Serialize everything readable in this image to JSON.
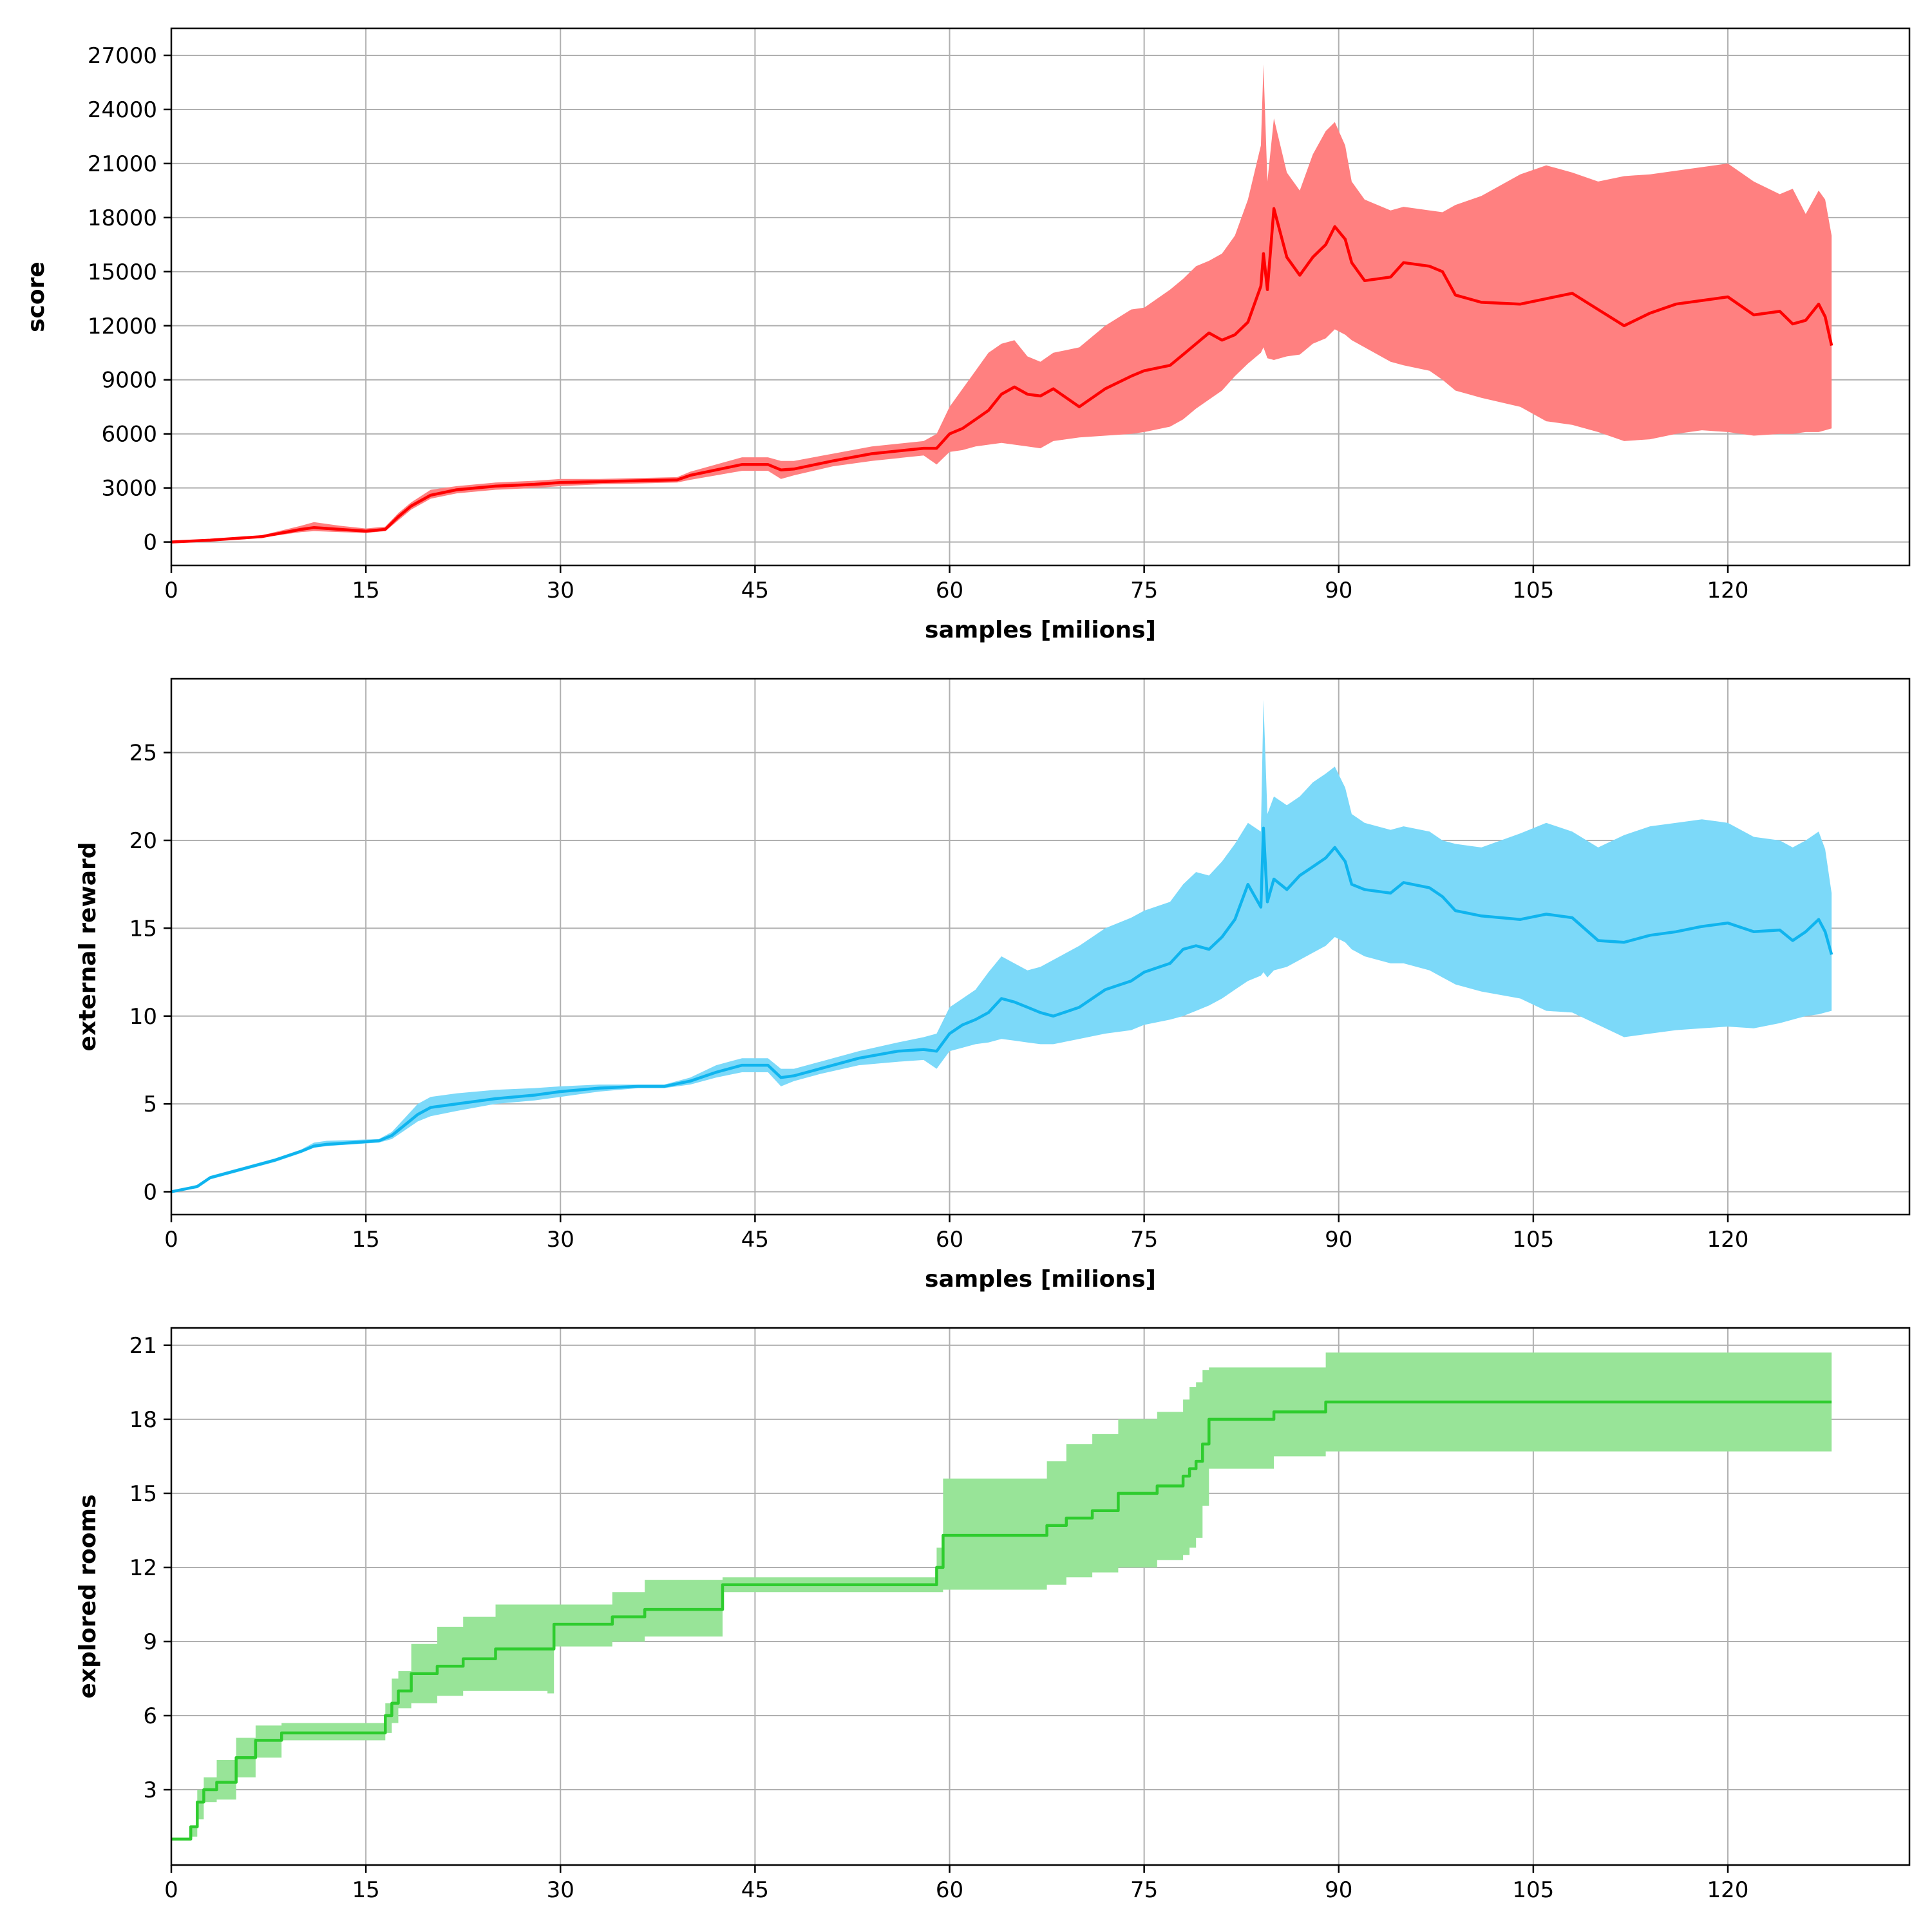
{
  "chart_data": [
    {
      "type": "line",
      "ylabel": "score",
      "xlabel": "samples [milions]",
      "xlim": [
        0,
        134
      ],
      "ylim": [
        -1300,
        28500
      ],
      "xticks": [
        0,
        15,
        30,
        45,
        60,
        75,
        90,
        105,
        120
      ],
      "yticks": [
        0,
        3000,
        6000,
        9000,
        12000,
        15000,
        18000,
        21000,
        24000,
        27000
      ],
      "grid": true,
      "color": "#ff0000",
      "band_color": "#ff8080",
      "series": [
        {
          "x": [
            0,
            3,
            7,
            10,
            11,
            13,
            15,
            16.5,
            17.5,
            18.5,
            20,
            22,
            25,
            28,
            30,
            33,
            36,
            39,
            40,
            42,
            44,
            46,
            47,
            48,
            51,
            54,
            58,
            59,
            60,
            61,
            62,
            63,
            64,
            65,
            66,
            67,
            68,
            70,
            72,
            74,
            75,
            77,
            78,
            79,
            80,
            81,
            82,
            83,
            84,
            84.2,
            84.5,
            85,
            86,
            87,
            88,
            89,
            89.7,
            90.5,
            91,
            92,
            94,
            95,
            97,
            98,
            99,
            101,
            104,
            106,
            108,
            110,
            112,
            114,
            116,
            118,
            120,
            122,
            124,
            125,
            126,
            127,
            127.5,
            128
          ],
          "y": [
            0,
            100,
            300,
            700,
            800,
            700,
            600,
            700,
            1400,
            2000,
            2600,
            2900,
            3100,
            3200,
            3300,
            3350,
            3400,
            3450,
            3700,
            4000,
            4300,
            4300,
            4000,
            4050,
            4500,
            4900,
            5200,
            5200,
            6000,
            6300,
            6800,
            7300,
            8200,
            8600,
            8200,
            8100,
            8500,
            7500,
            8500,
            9200,
            9500,
            9800,
            10400,
            11000,
            11600,
            11200,
            11500,
            12200,
            14200,
            16000,
            14000,
            18500,
            15800,
            14800,
            15800,
            16500,
            17500,
            16800,
            15500,
            14500,
            14700,
            15500,
            15300,
            15000,
            13700,
            13300,
            13200,
            13500,
            13800,
            12900,
            12000,
            12700,
            13200,
            13400,
            13600,
            12600,
            12800,
            12100,
            12300,
            13200,
            12500,
            10900
          ],
          "lower": [
            0,
            80,
            250,
            550,
            600,
            550,
            500,
            600,
            1200,
            1800,
            2400,
            2700,
            2900,
            3000,
            3100,
            3200,
            3250,
            3300,
            3450,
            3700,
            3950,
            3950,
            3500,
            3700,
            4200,
            4500,
            4800,
            4300,
            5000,
            5100,
            5300,
            5400,
            5500,
            5400,
            5300,
            5200,
            5600,
            5800,
            5900,
            6000,
            6100,
            6400,
            6800,
            7400,
            7900,
            8400,
            9200,
            9900,
            10500,
            10800,
            10200,
            10100,
            10300,
            10400,
            11000,
            11300,
            11800,
            11500,
            11200,
            10800,
            10000,
            9800,
            9500,
            9000,
            8400,
            8000,
            7500,
            6700,
            6500,
            6100,
            5600,
            5700,
            6000,
            6200,
            6100,
            5900,
            6000,
            6000,
            6100,
            6100,
            6200,
            6300
          ],
          "upper": [
            0,
            120,
            380,
            900,
            1100,
            900,
            750,
            850,
            1600,
            2200,
            2900,
            3100,
            3300,
            3400,
            3500,
            3500,
            3550,
            3600,
            3900,
            4300,
            4700,
            4700,
            4500,
            4500,
            4900,
            5300,
            5600,
            6000,
            7500,
            8500,
            9500,
            10500,
            11000,
            11200,
            10300,
            10000,
            10500,
            10800,
            12000,
            12900,
            13000,
            14000,
            14600,
            15300,
            15600,
            16000,
            17000,
            19000,
            22000,
            26500,
            20000,
            23500,
            20500,
            19500,
            21500,
            22800,
            23300,
            22000,
            20000,
            19000,
            18400,
            18600,
            18400,
            18300,
            18700,
            19200,
            20400,
            20900,
            20500,
            20000,
            20300,
            20400,
            20600,
            20800,
            21000,
            20000,
            19300,
            19600,
            18200,
            19500,
            19000,
            17000
          ]
        }
      ]
    },
    {
      "type": "line",
      "ylabel": "external reward",
      "xlabel": "samples [milions]",
      "xlim": [
        0,
        134
      ],
      "ylim": [
        -1.3,
        29.2
      ],
      "xticks": [
        0,
        15,
        30,
        45,
        60,
        75,
        90,
        105,
        120
      ],
      "yticks": [
        0,
        5,
        10,
        15,
        20,
        25
      ],
      "grid": true,
      "color": "#0fb4ee",
      "band_color": "#7cd9f9",
      "series": [
        {
          "x": [
            0,
            2,
            3,
            5,
            8,
            10,
            11,
            12,
            14,
            16,
            17,
            18,
            19,
            20,
            22,
            25,
            28,
            30,
            33,
            36,
            38,
            40,
            42,
            44,
            46,
            47,
            48,
            50,
            53,
            56,
            58,
            59,
            60,
            61,
            62,
            63,
            64,
            65,
            66,
            67,
            68,
            70,
            72,
            74,
            75,
            77,
            78,
            79,
            80,
            81,
            82,
            83,
            84,
            84.2,
            84.5,
            85,
            86,
            87,
            88,
            89,
            89.7,
            90.5,
            91,
            92,
            94,
            95,
            97,
            98,
            99,
            101,
            104,
            106,
            108,
            110,
            112,
            114,
            116,
            118,
            120,
            122,
            124,
            125,
            126,
            127,
            127.5,
            128
          ],
          "y": [
            0,
            0.3,
            0.8,
            1.2,
            1.8,
            2.3,
            2.6,
            2.7,
            2.8,
            2.9,
            3.2,
            3.8,
            4.4,
            4.8,
            5.0,
            5.3,
            5.5,
            5.7,
            5.9,
            6.0,
            6.0,
            6.3,
            6.8,
            7.2,
            7.2,
            6.5,
            6.6,
            7.0,
            7.6,
            8.0,
            8.1,
            8.0,
            9.0,
            9.5,
            9.8,
            10.2,
            11.0,
            10.8,
            10.5,
            10.2,
            10.0,
            10.5,
            11.5,
            12.0,
            12.5,
            13.0,
            13.8,
            14.0,
            13.8,
            14.5,
            15.5,
            17.5,
            16.2,
            20.7,
            16.5,
            17.8,
            17.2,
            18.0,
            18.5,
            19.0,
            19.6,
            18.8,
            17.5,
            17.2,
            17.0,
            17.6,
            17.3,
            16.8,
            16.0,
            15.7,
            15.5,
            15.8,
            15.6,
            14.3,
            14.2,
            14.6,
            14.8,
            15.1,
            15.3,
            14.8,
            14.9,
            14.3,
            14.8,
            15.5,
            14.8,
            13.5
          ],
          "lower": [
            0,
            0.2,
            0.7,
            1.1,
            1.7,
            2.2,
            2.5,
            2.6,
            2.7,
            2.8,
            3.0,
            3.5,
            4.0,
            4.3,
            4.6,
            5.0,
            5.2,
            5.4,
            5.7,
            5.9,
            5.9,
            6.1,
            6.5,
            6.8,
            6.8,
            6.0,
            6.3,
            6.7,
            7.2,
            7.4,
            7.5,
            7.0,
            8.0,
            8.2,
            8.4,
            8.5,
            8.7,
            8.6,
            8.5,
            8.4,
            8.4,
            8.7,
            9.0,
            9.2,
            9.5,
            9.8,
            10.0,
            10.3,
            10.6,
            11.0,
            11.5,
            12.0,
            12.3,
            12.5,
            12.2,
            12.6,
            12.8,
            13.2,
            13.6,
            14.0,
            14.5,
            14.2,
            13.8,
            13.4,
            13.0,
            13.0,
            12.6,
            12.2,
            11.8,
            11.4,
            11.0,
            10.3,
            10.2,
            9.5,
            8.8,
            9.0,
            9.2,
            9.3,
            9.4,
            9.3,
            9.6,
            9.8,
            10.0,
            10.1,
            10.2,
            10.3
          ],
          "upper": [
            0,
            0.4,
            0.9,
            1.3,
            1.9,
            2.4,
            2.8,
            2.9,
            2.95,
            3.0,
            3.4,
            4.2,
            5.0,
            5.4,
            5.6,
            5.8,
            5.9,
            6.0,
            6.1,
            6.1,
            6.1,
            6.5,
            7.2,
            7.6,
            7.6,
            7.0,
            7.0,
            7.4,
            8.0,
            8.5,
            8.8,
            9.0,
            10.5,
            11.0,
            11.5,
            12.5,
            13.4,
            13.0,
            12.6,
            12.8,
            13.2,
            14.0,
            15.0,
            15.6,
            16.0,
            16.5,
            17.5,
            18.2,
            18.0,
            18.8,
            19.8,
            21.0,
            20.5,
            28.0,
            21.5,
            22.5,
            22.0,
            22.5,
            23.3,
            23.8,
            24.2,
            23.0,
            21.5,
            21.0,
            20.6,
            20.8,
            20.5,
            20.0,
            19.8,
            19.6,
            20.4,
            21.0,
            20.5,
            19.6,
            20.3,
            20.8,
            21.0,
            21.2,
            21.0,
            20.2,
            20.0,
            19.6,
            20.0,
            20.5,
            19.5,
            17.0
          ]
        }
      ]
    },
    {
      "type": "line",
      "ylabel": "explored rooms",
      "xlabel": "",
      "xlim": [
        0,
        134
      ],
      "ylim": [
        -0.05,
        21.7
      ],
      "xticks": [
        0,
        15,
        30,
        45,
        60,
        75,
        90,
        105,
        120
      ],
      "yticks": [
        3,
        6,
        9,
        12,
        15,
        18,
        21
      ],
      "grid": true,
      "step": true,
      "color": "#2ecc2e",
      "band_color": "#98e498",
      "series": [
        {
          "x": [
            0,
            1.5,
            2,
            2.5,
            3.5,
            5,
            6.5,
            8.5,
            16,
            16.5,
            17,
            17.5,
            18.5,
            20.5,
            22.5,
            25,
            29,
            29.5,
            34,
            36.5,
            42,
            42.5,
            58.5,
            59,
            59.5,
            67.5,
            69,
            71,
            73,
            76,
            78,
            78.5,
            79,
            79.5,
            80,
            85,
            89,
            128
          ],
          "y": [
            1,
            1.5,
            2.5,
            3,
            3.3,
            4.3,
            5,
            5.3,
            5.3,
            6,
            6.5,
            7,
            7.7,
            8,
            8.3,
            8.7,
            8.7,
            9.7,
            10,
            10.3,
            10.3,
            11.3,
            11.3,
            12,
            13.3,
            13.7,
            14,
            14.3,
            15,
            15.3,
            15.7,
            16,
            16.3,
            17,
            18,
            18.3,
            18.7,
            18.7
          ],
          "lower": [
            1,
            1.1,
            1.8,
            2.5,
            2.6,
            3.5,
            4.3,
            5.0,
            5.0,
            5.3,
            5.7,
            6.3,
            6.5,
            6.8,
            7.0,
            7.0,
            6.9,
            8.8,
            9.0,
            9.2,
            9.2,
            11.0,
            11.0,
            11.0,
            11.1,
            11.3,
            11.6,
            11.8,
            12.0,
            12.3,
            12.5,
            12.8,
            13.2,
            14.5,
            16.0,
            16.5,
            16.7,
            16.7
          ],
          "upper": [
            1,
            1.5,
            3.0,
            3.5,
            4.2,
            5.1,
            5.6,
            5.7,
            5.7,
            6.5,
            7.5,
            7.8,
            8.9,
            9.6,
            10.0,
            10.5,
            10.5,
            10.5,
            11.0,
            11.5,
            11.5,
            11.6,
            11.6,
            12.8,
            15.6,
            16.3,
            17.0,
            17.4,
            18.0,
            18.3,
            18.8,
            19.3,
            19.5,
            20.0,
            20.1,
            20.1,
            20.7,
            20.7
          ]
        }
      ]
    }
  ]
}
